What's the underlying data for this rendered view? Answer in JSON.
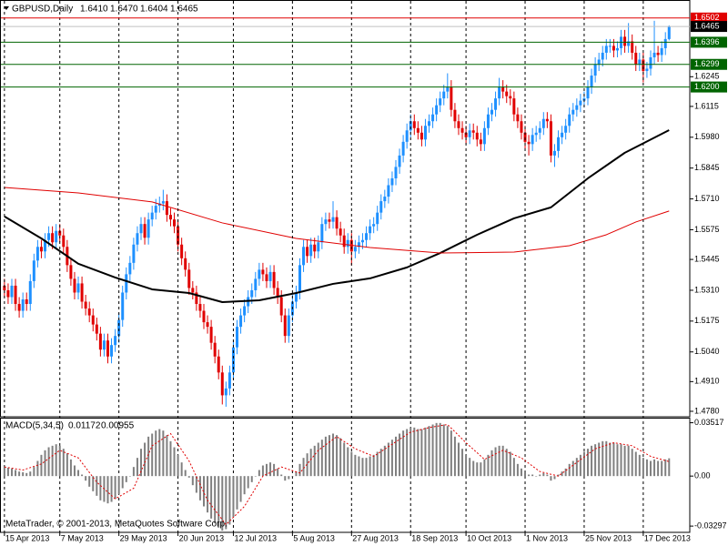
{
  "chart_data": [
    {
      "type": "candlestick",
      "title": "GBPUSD,Daily",
      "ohlc_labels": [
        "1.6410",
        "1.6470",
        "1.6404",
        "1.6465"
      ],
      "up_color": "#1e90ff",
      "down_color": "#e00000",
      "xlim": [
        -1.2,
        185.6
      ],
      "ylim": [
        1.4756,
        1.6561
      ],
      "yticks": [
        1.6245,
        1.6115,
        {
          "value": 1.598,
          "label": "1.5980"
        },
        1.5845,
        {
          "value": 1.571,
          "label": "1.5710"
        },
        1.5575,
        1.5445,
        {
          "value": 1.531,
          "label": "1.5310"
        },
        1.5175,
        {
          "value": 1.504,
          "label": "1.5040"
        },
        {
          "value": 1.491,
          "label": "1.4910"
        },
        {
          "value": 1.478,
          "label": "1.4780"
        }
      ],
      "levels": [
        {
          "value": 1.6502,
          "color": "#e00000"
        },
        {
          "value": 1.6465,
          "color": "#000000",
          "line_color": "#c0c0c0"
        },
        {
          "value": 1.6396,
          "color": "#006400"
        },
        {
          "value": 1.6299,
          "color": "#006400"
        },
        {
          "value": 1.62,
          "label": "1.6200",
          "color": "#006400"
        }
      ],
      "open": [
        1.533,
        1.531,
        1.528,
        1.533,
        1.525,
        1.522,
        1.527,
        1.525,
        1.535,
        1.544,
        1.55,
        1.548,
        1.553,
        1.556,
        1.552,
        1.557,
        1.555,
        1.55,
        1.542,
        1.536,
        1.53,
        1.534,
        1.526,
        1.523,
        1.52,
        1.516,
        1.512,
        1.505,
        1.509,
        1.502,
        1.507,
        1.511,
        1.518,
        1.53,
        1.538,
        1.543,
        1.551,
        1.556,
        1.56,
        1.554,
        1.562,
        1.565,
        1.568,
        1.569,
        1.57,
        1.564,
        1.562,
        1.559,
        1.551,
        1.545,
        1.54,
        1.532,
        1.53,
        1.525,
        1.522,
        1.517,
        1.515,
        1.508,
        1.502,
        1.495,
        1.485,
        1.488,
        1.495,
        1.506,
        1.515,
        1.52,
        1.524,
        1.528,
        1.531,
        1.536,
        1.54,
        1.538,
        1.535,
        1.539,
        1.532,
        1.528,
        1.52,
        1.511,
        1.52,
        1.526,
        1.53,
        1.542,
        1.55,
        1.546,
        1.551,
        1.548,
        1.552,
        1.56,
        1.562,
        1.561,
        1.563,
        1.558,
        1.555,
        1.55,
        1.553,
        1.548,
        1.55,
        1.552,
        1.553,
        1.556,
        1.559,
        1.56,
        1.565,
        1.57,
        1.572,
        1.577,
        1.58,
        1.585,
        1.59,
        1.596,
        1.601,
        1.605,
        1.602,
        1.6,
        1.597,
        1.603,
        1.605,
        1.608,
        1.612,
        1.615,
        1.618,
        1.62,
        1.61,
        1.605,
        1.602,
        1.6,
        1.598,
        1.601,
        1.6,
        1.597,
        1.595,
        1.602,
        1.608,
        1.61,
        1.615,
        1.62,
        1.618,
        1.616,
        1.615,
        1.608,
        1.605,
        1.6,
        1.596,
        1.595,
        1.599,
        1.6,
        1.602,
        1.606,
        1.605,
        1.59,
        1.592,
        1.598,
        1.6,
        1.603,
        1.608,
        1.61,
        1.612,
        1.614,
        1.615,
        1.62,
        1.625,
        1.63,
        1.632,
        1.635,
        1.638,
        1.638,
        1.636,
        1.637,
        1.642,
        1.638,
        1.64,
        1.635,
        1.63,
        1.632,
        1.627,
        1.628,
        1.633,
        1.635,
        1.634,
        1.637,
        1.641
      ],
      "high": [
        1.536,
        1.534,
        1.536,
        1.536,
        1.528,
        1.53,
        1.53,
        1.538,
        1.547,
        1.553,
        1.553,
        1.556,
        1.559,
        1.559,
        1.56,
        1.56,
        1.558,
        1.553,
        1.545,
        1.539,
        1.537,
        1.537,
        1.529,
        1.526,
        1.523,
        1.519,
        1.515,
        1.512,
        1.512,
        1.51,
        1.514,
        1.521,
        1.533,
        1.541,
        1.546,
        1.554,
        1.559,
        1.563,
        1.563,
        1.565,
        1.568,
        1.571,
        1.572,
        1.575,
        1.573,
        1.567,
        1.565,
        1.562,
        1.554,
        1.548,
        1.543,
        1.535,
        1.533,
        1.528,
        1.525,
        1.52,
        1.518,
        1.511,
        1.505,
        1.498,
        1.491,
        1.498,
        1.509,
        1.518,
        1.523,
        1.527,
        1.531,
        1.534,
        1.539,
        1.543,
        1.543,
        1.541,
        1.542,
        1.542,
        1.535,
        1.531,
        1.523,
        1.523,
        1.529,
        1.533,
        1.545,
        1.553,
        1.553,
        1.554,
        1.554,
        1.555,
        1.563,
        1.565,
        1.565,
        1.57,
        1.566,
        1.561,
        1.558,
        1.556,
        1.556,
        1.553,
        1.555,
        1.556,
        1.559,
        1.562,
        1.563,
        1.568,
        1.573,
        1.575,
        1.58,
        1.583,
        1.588,
        1.593,
        1.599,
        1.604,
        1.608,
        1.608,
        1.605,
        1.603,
        1.606,
        1.608,
        1.611,
        1.615,
        1.618,
        1.621,
        1.626,
        1.623,
        1.613,
        1.608,
        1.605,
        1.603,
        1.604,
        1.604,
        1.603,
        1.6,
        1.605,
        1.611,
        1.613,
        1.618,
        1.624,
        1.623,
        1.621,
        1.619,
        1.618,
        1.611,
        1.608,
        1.603,
        1.599,
        1.602,
        1.603,
        1.605,
        1.609,
        1.609,
        1.608,
        1.595,
        1.601,
        1.603,
        1.606,
        1.611,
        1.613,
        1.615,
        1.617,
        1.618,
        1.623,
        1.628,
        1.633,
        1.635,
        1.638,
        1.641,
        1.641,
        1.641,
        1.64,
        1.645,
        1.645,
        1.648,
        1.643,
        1.638,
        1.635,
        1.635,
        1.631,
        1.636,
        1.649,
        1.638,
        1.64,
        1.644,
        1.647
      ],
      "low": [
        1.528,
        1.525,
        1.525,
        1.522,
        1.519,
        1.519,
        1.522,
        1.522,
        1.532,
        1.541,
        1.545,
        1.545,
        1.55,
        1.549,
        1.549,
        1.552,
        1.547,
        1.539,
        1.533,
        1.527,
        1.527,
        1.523,
        1.52,
        1.517,
        1.513,
        1.509,
        1.502,
        1.502,
        1.499,
        1.499,
        1.504,
        1.508,
        1.515,
        1.527,
        1.535,
        1.54,
        1.548,
        1.553,
        1.551,
        1.551,
        1.559,
        1.562,
        1.565,
        1.566,
        1.561,
        1.559,
        1.556,
        1.548,
        1.542,
        1.537,
        1.529,
        1.527,
        1.522,
        1.519,
        1.514,
        1.512,
        1.505,
        1.499,
        1.492,
        1.481,
        1.48,
        1.485,
        1.492,
        1.503,
        1.512,
        1.517,
        1.521,
        1.525,
        1.528,
        1.533,
        1.535,
        1.532,
        1.532,
        1.529,
        1.525,
        1.517,
        1.508,
        1.508,
        1.517,
        1.523,
        1.527,
        1.539,
        1.543,
        1.543,
        1.545,
        1.545,
        1.549,
        1.557,
        1.558,
        1.558,
        1.555,
        1.552,
        1.547,
        1.547,
        1.542,
        1.545,
        1.547,
        1.549,
        1.55,
        1.553,
        1.556,
        1.557,
        1.562,
        1.567,
        1.569,
        1.574,
        1.577,
        1.582,
        1.587,
        1.593,
        1.598,
        1.599,
        1.597,
        1.594,
        1.594,
        1.6,
        1.602,
        1.605,
        1.609,
        1.612,
        1.615,
        1.607,
        1.602,
        1.599,
        1.597,
        1.595,
        1.595,
        1.597,
        1.594,
        1.592,
        1.592,
        1.599,
        1.605,
        1.607,
        1.612,
        1.615,
        1.613,
        1.612,
        1.605,
        1.602,
        1.597,
        1.593,
        1.59,
        1.592,
        1.596,
        1.597,
        1.599,
        1.602,
        1.587,
        1.585,
        1.589,
        1.595,
        1.597,
        1.6,
        1.605,
        1.607,
        1.609,
        1.611,
        1.612,
        1.617,
        1.622,
        1.627,
        1.629,
        1.632,
        1.635,
        1.633,
        1.633,
        1.634,
        1.635,
        1.635,
        1.632,
        1.627,
        1.627,
        1.622,
        1.624,
        1.625,
        1.63,
        1.631,
        1.631,
        1.634,
        1.6404
      ],
      "close": [
        1.531,
        1.528,
        1.533,
        1.525,
        1.522,
        1.527,
        1.525,
        1.535,
        1.544,
        1.55,
        1.548,
        1.553,
        1.556,
        1.552,
        1.557,
        1.555,
        1.55,
        1.542,
        1.536,
        1.53,
        1.534,
        1.526,
        1.523,
        1.52,
        1.516,
        1.512,
        1.505,
        1.509,
        1.502,
        1.507,
        1.511,
        1.518,
        1.53,
        1.538,
        1.543,
        1.551,
        1.556,
        1.56,
        1.554,
        1.562,
        1.565,
        1.568,
        1.569,
        1.57,
        1.564,
        1.562,
        1.559,
        1.551,
        1.545,
        1.54,
        1.532,
        1.53,
        1.525,
        1.522,
        1.517,
        1.515,
        1.508,
        1.502,
        1.495,
        1.485,
        1.488,
        1.495,
        1.506,
        1.515,
        1.52,
        1.524,
        1.528,
        1.531,
        1.536,
        1.54,
        1.538,
        1.535,
        1.539,
        1.532,
        1.528,
        1.52,
        1.511,
        1.52,
        1.526,
        1.53,
        1.542,
        1.55,
        1.546,
        1.551,
        1.548,
        1.552,
        1.56,
        1.562,
        1.561,
        1.563,
        1.558,
        1.555,
        1.55,
        1.553,
        1.548,
        1.55,
        1.552,
        1.553,
        1.556,
        1.559,
        1.56,
        1.565,
        1.57,
        1.572,
        1.577,
        1.58,
        1.585,
        1.59,
        1.596,
        1.601,
        1.605,
        1.602,
        1.6,
        1.597,
        1.603,
        1.605,
        1.608,
        1.612,
        1.615,
        1.618,
        1.62,
        1.61,
        1.605,
        1.602,
        1.6,
        1.598,
        1.601,
        1.6,
        1.597,
        1.595,
        1.602,
        1.608,
        1.61,
        1.615,
        1.62,
        1.618,
        1.616,
        1.615,
        1.608,
        1.605,
        1.6,
        1.596,
        1.595,
        1.599,
        1.6,
        1.602,
        1.606,
        1.605,
        1.59,
        1.592,
        1.598,
        1.6,
        1.603,
        1.608,
        1.61,
        1.612,
        1.614,
        1.615,
        1.62,
        1.625,
        1.63,
        1.632,
        1.635,
        1.638,
        1.638,
        1.636,
        1.637,
        1.642,
        1.638,
        1.64,
        1.635,
        1.63,
        1.632,
        1.627,
        1.628,
        1.633,
        1.635,
        1.634,
        1.637,
        1.641,
        1.6465
      ],
      "lines": [
        {
          "color": "#000000",
          "width": 2,
          "x": [
            0,
            10,
            20,
            30,
            40,
            50,
            59,
            69,
            79,
            89,
            99,
            109,
            118,
            128,
            138,
            148,
            158,
            168,
            180
          ],
          "values": [
            1.5633,
            1.5537,
            1.5426,
            1.5366,
            1.5314,
            1.5298,
            1.5258,
            1.5266,
            1.5298,
            1.5338,
            1.5362,
            1.541,
            1.5473,
            1.5553,
            1.5625,
            1.5673,
            1.58,
            1.5912,
            1.6011
          ]
        },
        {
          "color": "#e00000",
          "width": 1,
          "x": [
            0,
            20,
            40,
            59,
            79,
            99,
            118,
            138,
            153,
            163,
            171,
            180
          ],
          "values": [
            1.576,
            1.5736,
            1.5697,
            1.5605,
            1.5537,
            1.5497,
            1.5473,
            1.5477,
            1.5505,
            1.5553,
            1.5609,
            1.5657
          ]
        }
      ]
    },
    {
      "type": "macd",
      "title": "MACD(5,34,5)",
      "bar_color": "#808080",
      "signal_color": "#e00000",
      "xlim": [
        -1.2,
        185.6
      ],
      "ylim": [
        -0.0365,
        0.0385
      ],
      "yticks": [
        0.03517,
        {
          "value": 0,
          "label": "0.00"
        },
        -0.03297
      ],
      "xticks": [
        {
          "value": 0,
          "label": "15 Apr 2013"
        },
        {
          "value": 15,
          "label": "7 May 2013"
        },
        {
          "value": 31,
          "label": "29 May 2013"
        },
        {
          "value": 47,
          "label": "20 Jun 2013"
        },
        {
          "value": 62,
          "label": "12 Jul 2013"
        },
        {
          "value": 78,
          "label": "5 Aug 2013"
        },
        {
          "value": 94,
          "label": "27 Aug 2013"
        },
        {
          "value": 110,
          "label": "18 Sep 2013"
        },
        {
          "value": 125,
          "label": "10 Oct 2013"
        },
        {
          "value": 141,
          "label": "1 Nov 2013"
        },
        {
          "value": 157,
          "label": "25 Nov 2013"
        },
        {
          "value": 173,
          "label": "17 Dec 2013"
        }
      ],
      "histogram": [
        0.006,
        0.0055,
        0.005,
        0.004,
        0.003,
        0.0025,
        0.002,
        0.003,
        0.006,
        0.01,
        0.014,
        0.017,
        0.019,
        0.02,
        0.021,
        0.02,
        0.018,
        0.015,
        0.011,
        0.007,
        0.004,
        0.001,
        -0.003,
        -0.007,
        -0.01,
        -0.013,
        -0.016,
        -0.017,
        -0.018,
        -0.017,
        -0.015,
        -0.012,
        -0.008,
        -0.004,
        0.0,
        0.006,
        0.012,
        0.018,
        0.022,
        0.026,
        0.028,
        0.03,
        0.031,
        0.03,
        0.027,
        0.023,
        0.019,
        0.014,
        0.009,
        0.004,
        -0.001,
        -0.006,
        -0.011,
        -0.016,
        -0.02,
        -0.024,
        -0.028,
        -0.031,
        -0.034,
        -0.036,
        -0.035,
        -0.032,
        -0.027,
        -0.022,
        -0.017,
        -0.012,
        -0.008,
        -0.004,
        0.0,
        0.004,
        0.007,
        0.008,
        0.009,
        0.008,
        0.005,
        0.001,
        -0.003,
        -0.002,
        0.0,
        0.003,
        0.008,
        0.012,
        0.015,
        0.018,
        0.02,
        0.022,
        0.024,
        0.026,
        0.027,
        0.028,
        0.027,
        0.025,
        0.022,
        0.019,
        0.016,
        0.014,
        0.013,
        0.012,
        0.012,
        0.013,
        0.014,
        0.016,
        0.018,
        0.02,
        0.022,
        0.024,
        0.026,
        0.028,
        0.03,
        0.031,
        0.032,
        0.032,
        0.031,
        0.031,
        0.032,
        0.033,
        0.034,
        0.035,
        0.035,
        0.034,
        0.033,
        0.03,
        0.026,
        0.022,
        0.018,
        0.014,
        0.012,
        0.01,
        0.009,
        0.009,
        0.011,
        0.014,
        0.017,
        0.019,
        0.02,
        0.02,
        0.018,
        0.016,
        0.012,
        0.008,
        0.005,
        0.002,
        0.001,
        0.001,
        0.0,
        0.001,
        0.002,
        0.001,
        -0.003,
        -0.002,
        0.001,
        0.003,
        0.005,
        0.008,
        0.01,
        0.012,
        0.014,
        0.016,
        0.018,
        0.02,
        0.021,
        0.022,
        0.023,
        0.023,
        0.022,
        0.022,
        0.021,
        0.021,
        0.02,
        0.02,
        0.018,
        0.016,
        0.014,
        0.012,
        0.011,
        0.01,
        0.011,
        0.01,
        0.01,
        0.011,
        0.01172
      ],
      "signal": {
        "x": [
          0,
          5,
          10,
          15,
          20,
          25,
          30,
          35,
          40,
          45,
          50,
          55,
          60,
          65,
          70,
          75,
          80,
          85,
          90,
          95,
          100,
          105,
          110,
          115,
          120,
          125,
          130,
          135,
          140,
          145,
          150,
          155,
          160,
          165,
          170,
          175,
          180
        ],
        "values": [
          0.006,
          0.004,
          0.008,
          0.017,
          0.012,
          -0.004,
          -0.015,
          -0.008,
          0.02,
          0.028,
          0.01,
          -0.016,
          -0.032,
          -0.02,
          0.0,
          0.006,
          0.002,
          0.017,
          0.026,
          0.018,
          0.013,
          0.021,
          0.029,
          0.032,
          0.034,
          0.022,
          0.011,
          0.017,
          0.012,
          0.003,
          0.0,
          0.009,
          0.018,
          0.022,
          0.02,
          0.013,
          0.00955
        ]
      },
      "footer": "MetaTrader, © 2001-2013, MetaQuotes Software Corp."
    }
  ]
}
